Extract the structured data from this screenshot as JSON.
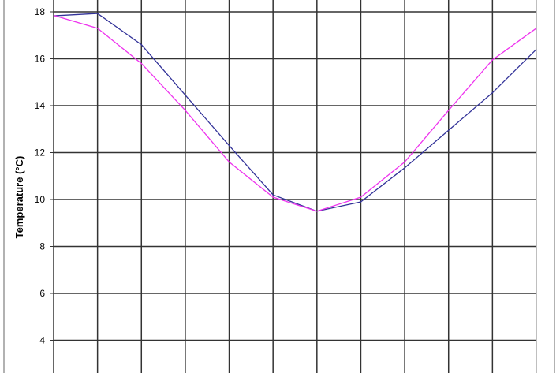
{
  "chart_data": {
    "type": "line",
    "title": "",
    "xlabel": "",
    "ylabel": "Temperature (°C)",
    "ylim": [
      2.6,
      18.5
    ],
    "yticks": [
      4,
      6,
      8,
      10,
      12,
      14,
      16,
      18
    ],
    "grid": true,
    "x": [
      1,
      2,
      3,
      4,
      5,
      6,
      7,
      8,
      9,
      10,
      11,
      12
    ],
    "series": [
      {
        "color": "#333399",
        "values": [
          17.83,
          17.93,
          16.6,
          14.45,
          12.3,
          10.2,
          9.5,
          9.9,
          11.35,
          12.95,
          14.55,
          16.4
        ]
      },
      {
        "color": "#ee33ee",
        "values": [
          17.85,
          17.3,
          15.8,
          13.8,
          11.6,
          10.1,
          9.5,
          10.1,
          11.6,
          13.8,
          15.95,
          17.3
        ]
      }
    ]
  }
}
